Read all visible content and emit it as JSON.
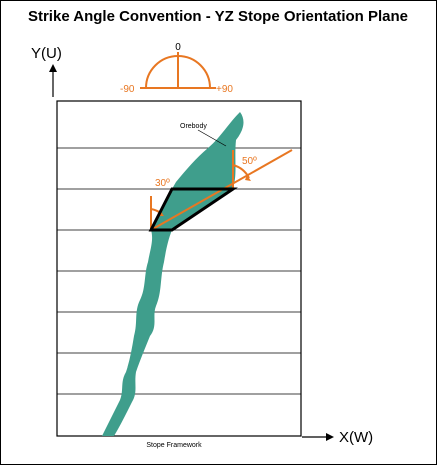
{
  "title": "Strike Angle Convention - YZ Stope Orientation Plane",
  "axes": {
    "y_label": "Y(U)",
    "x_label": "X(W)"
  },
  "protractor": {
    "top_label": "0",
    "left_label": "-90",
    "right_label": "+90"
  },
  "labels": {
    "orebody": "Orebody",
    "angle_left": "30º",
    "angle_right": "50º",
    "framework": "Stope Framework"
  },
  "colors": {
    "orebody_fill": "#3f9e8c",
    "accent": "#e87722",
    "stope_outline": "#000000"
  }
}
